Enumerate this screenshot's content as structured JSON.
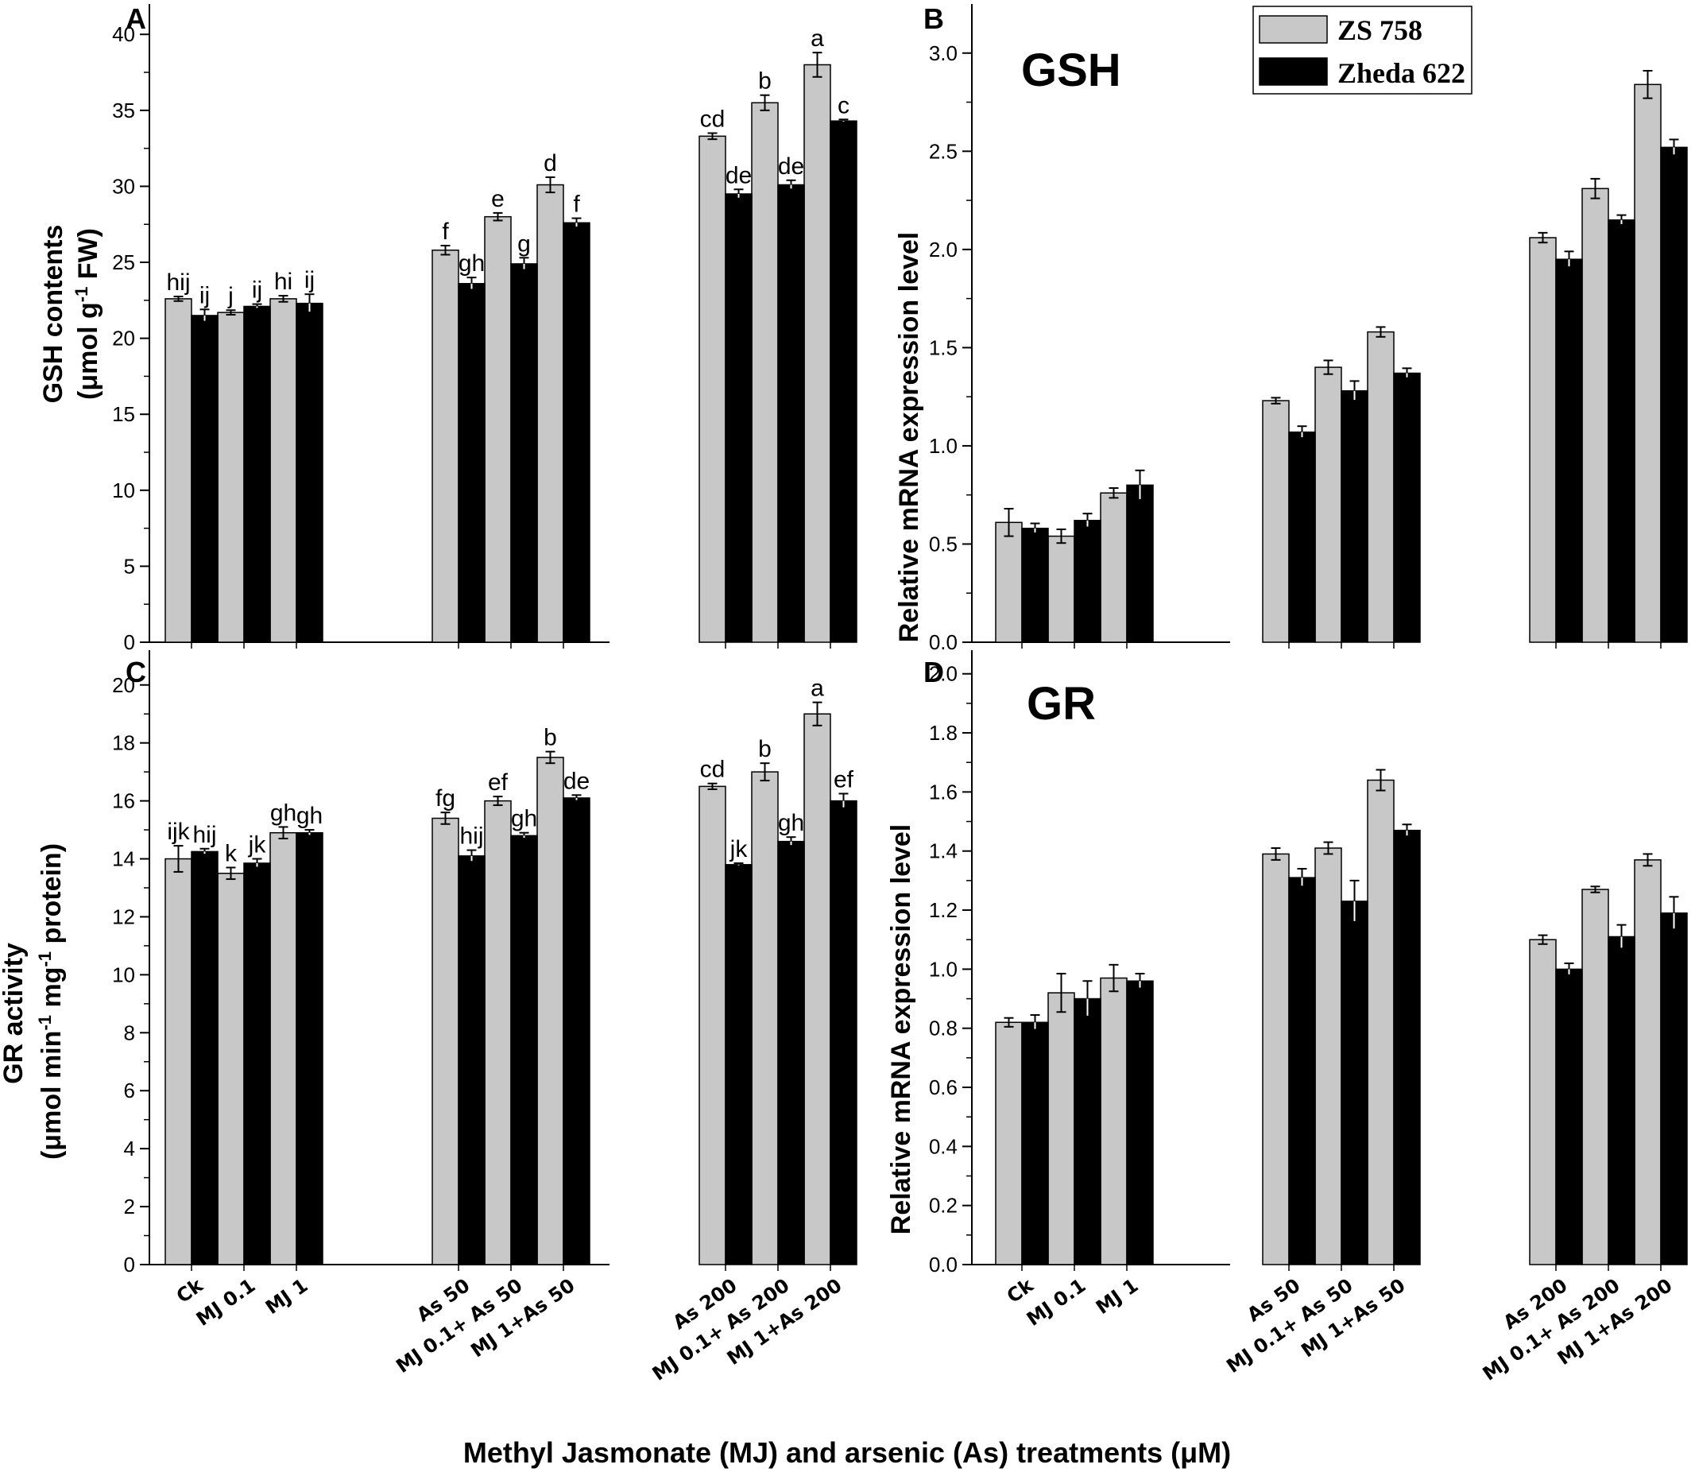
{
  "figure": {
    "x_title": "Methyl Jasmonate (MJ) and arsenic (As) treatments (μM)",
    "legend": {
      "entries": [
        {
          "name": "ZS 758",
          "color": "#c8c8c8"
        },
        {
          "name": "Zheda 622",
          "color": "#000000"
        }
      ]
    },
    "categories": [
      "Ck",
      "MJ 0.1",
      "MJ 1",
      "As 50",
      "MJ 0.1+ As 50",
      "MJ 1+As 50",
      "As 200",
      "MJ 0.1+ As 200",
      "MJ 1+As 200"
    ]
  },
  "chart_data": [
    {
      "panel": "A",
      "type": "bar",
      "title": "",
      "ylabel_line1": "GSH contents",
      "ylabel_line2_pre": "(μmol g",
      "ylabel_line2_sup": "-1",
      "ylabel_line2_post": " FW)",
      "ylim": [
        0,
        42
      ],
      "yticks": [
        0,
        5,
        10,
        15,
        20,
        25,
        30,
        35,
        40
      ],
      "series": [
        {
          "name": "ZS 758",
          "values": [
            22.6,
            21.7,
            22.6,
            25.8,
            28.0,
            30.1,
            33.3,
            35.5,
            38.0
          ],
          "errors": [
            0.15,
            0.15,
            0.2,
            0.3,
            0.25,
            0.5,
            0.2,
            0.5,
            0.8
          ]
        },
        {
          "name": "Zheda 622",
          "values": [
            21.5,
            22.1,
            22.3,
            23.6,
            24.9,
            27.6,
            29.5,
            30.1,
            34.3
          ],
          "errors": [
            0.4,
            0.15,
            0.6,
            0.4,
            0.4,
            0.3,
            0.3,
            0.3,
            0.1
          ]
        }
      ],
      "labels": {
        "ZS 758": [
          "hij",
          "j",
          "hi",
          "f",
          "e",
          "d",
          "cd",
          "b",
          "a"
        ],
        "Zheda 622": [
          "ij",
          "ij",
          "ij",
          "gh",
          "g",
          "f",
          "de",
          "de",
          "c"
        ]
      }
    },
    {
      "panel": "B",
      "type": "bar",
      "title": "GSH",
      "ylabel": "Relative mRNA expression level",
      "ylim": [
        0,
        3.25
      ],
      "yticks": [
        "0.0",
        "0.5",
        "1.0",
        "1.5",
        "2.0",
        "2.5",
        "3.0"
      ],
      "series": [
        {
          "name": "ZS 758",
          "values": [
            0.61,
            0.54,
            0.76,
            1.23,
            1.4,
            1.58,
            2.06,
            2.31,
            2.84
          ],
          "errors": [
            0.07,
            0.035,
            0.025,
            0.015,
            0.035,
            0.025,
            0.025,
            0.05,
            0.07
          ]
        },
        {
          "name": "Zheda 622",
          "values": [
            0.58,
            0.62,
            0.8,
            1.07,
            1.28,
            1.37,
            1.95,
            2.15,
            2.52
          ],
          "errors": [
            0.025,
            0.035,
            0.075,
            0.03,
            0.05,
            0.025,
            0.04,
            0.025,
            0.04
          ]
        }
      ]
    },
    {
      "panel": "C",
      "type": "bar",
      "title": "",
      "ylabel_line1": "GR activity",
      "ylabel_line2_pre": "(μmol min",
      "ylabel_line2_sup1": "-1",
      "ylabel_line2_mid": " mg",
      "ylabel_line2_sup2": "-1",
      "ylabel_line2_post": " protein)",
      "ylim": [
        0,
        21.2
      ],
      "yticks": [
        0,
        2,
        4,
        6,
        8,
        10,
        12,
        14,
        16,
        18,
        20
      ],
      "series": [
        {
          "name": "ZS 758",
          "values": [
            14.0,
            13.5,
            14.9,
            15.4,
            16.0,
            17.5,
            16.5,
            17.0,
            19.0
          ],
          "errors": [
            0.45,
            0.2,
            0.2,
            0.2,
            0.15,
            0.2,
            0.1,
            0.3,
            0.4
          ]
        },
        {
          "name": "Zheda 622",
          "values": [
            14.25,
            13.85,
            14.9,
            14.1,
            14.8,
            16.1,
            13.8,
            14.6,
            16.0
          ],
          "errors": [
            0.1,
            0.15,
            0.1,
            0.2,
            0.1,
            0.1,
            0.05,
            0.15,
            0.25
          ]
        }
      ],
      "labels": {
        "ZS 758": [
          "ijk",
          "k",
          "gh",
          "fg",
          "ef",
          "b",
          "cd",
          "b",
          "a"
        ],
        "Zheda 622": [
          "hij",
          "jk",
          "gh",
          "hij",
          "gh",
          "de",
          "jk",
          "gh",
          "ef"
        ]
      }
    },
    {
      "panel": "D",
      "type": "bar",
      "title": "GR",
      "ylabel": "Relative mRNA expression level",
      "ylim": [
        0,
        2.08
      ],
      "yticks": [
        "0.0",
        "0.2",
        "0.4",
        "0.6",
        "0.8",
        "1.0",
        "1.2",
        "1.4",
        "1.6",
        "1.8",
        "2.0"
      ],
      "series": [
        {
          "name": "ZS 758",
          "values": [
            0.82,
            0.92,
            0.97,
            1.39,
            1.41,
            1.64,
            1.1,
            1.27,
            1.37
          ],
          "errors": [
            0.015,
            0.065,
            0.045,
            0.02,
            0.02,
            0.035,
            0.015,
            0.01,
            0.02
          ]
        },
        {
          "name": "Zheda 622",
          "values": [
            0.82,
            0.9,
            0.96,
            1.31,
            1.23,
            1.47,
            1.0,
            1.11,
            1.19
          ],
          "errors": [
            0.025,
            0.06,
            0.025,
            0.03,
            0.07,
            0.02,
            0.02,
            0.04,
            0.055
          ]
        }
      ]
    }
  ]
}
